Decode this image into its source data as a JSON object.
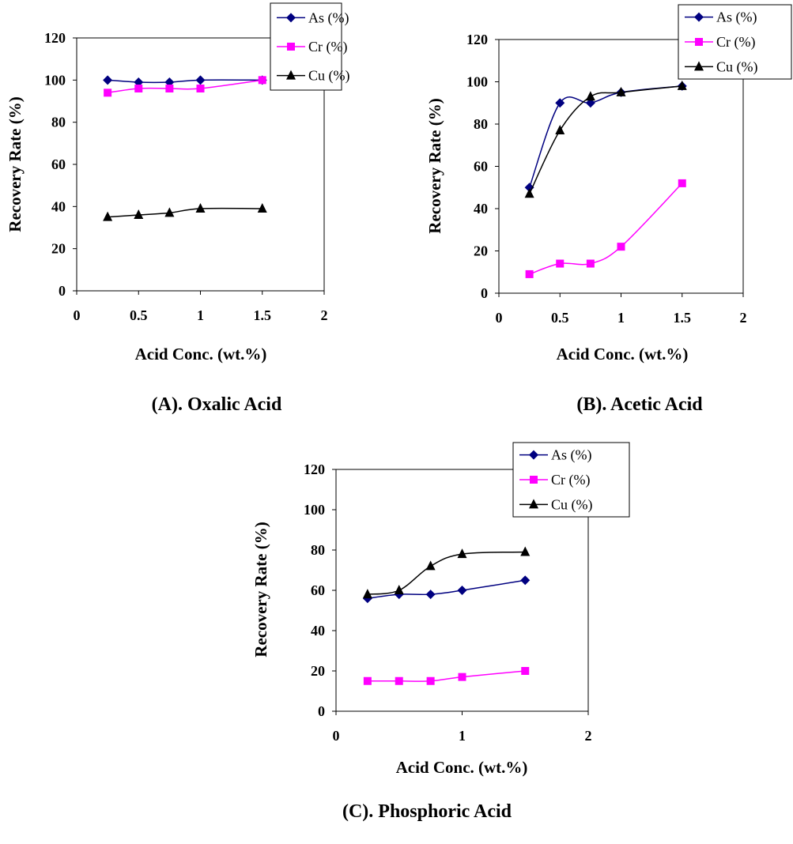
{
  "colors": {
    "as": "#000080",
    "cr": "#FF00FF",
    "cu": "#000000"
  },
  "chart_data": [
    {
      "type": "line",
      "caption": "(A). Oxalic Acid",
      "xlabel": "Acid Conc. (wt.%)",
      "ylabel": "Recovery Rate (%)",
      "xlim": [
        0,
        2
      ],
      "ylim": [
        0,
        120
      ],
      "xticks": [
        "0",
        "0.5",
        "1",
        "1.5",
        "2"
      ],
      "yticks": [
        "0",
        "20",
        "40",
        "60",
        "80",
        "100",
        "120"
      ],
      "legend_position": "top-right",
      "series": [
        {
          "name": "As (%)",
          "marker": "diamond",
          "x": [
            0.25,
            0.5,
            0.75,
            1.0,
            1.5
          ],
          "y": [
            100,
            99,
            99,
            100,
            100
          ]
        },
        {
          "name": "Cr (%)",
          "marker": "square",
          "x": [
            0.25,
            0.5,
            0.75,
            1.0,
            1.5
          ],
          "y": [
            94,
            96,
            96,
            96,
            100
          ]
        },
        {
          "name": "Cu (%)",
          "marker": "triangle",
          "x": [
            0.25,
            0.5,
            0.75,
            1.0,
            1.5
          ],
          "y": [
            35,
            36,
            37,
            39,
            39
          ]
        }
      ]
    },
    {
      "type": "line",
      "caption": "(B). Acetic Acid",
      "xlabel": "Acid Conc. (wt.%)",
      "ylabel": "Recovery Rate (%)",
      "xlim": [
        0,
        2
      ],
      "ylim": [
        0,
        120
      ],
      "xticks": [
        "0",
        "0.5",
        "1",
        "1.5",
        "2"
      ],
      "yticks": [
        "0",
        "20",
        "40",
        "60",
        "80",
        "100",
        "120"
      ],
      "legend_position": "top-right",
      "series": [
        {
          "name": "As (%)",
          "marker": "diamond",
          "x": [
            0.25,
            0.5,
            0.75,
            1.0,
            1.5
          ],
          "y": [
            50,
            90,
            90,
            95,
            98
          ]
        },
        {
          "name": "Cr (%)",
          "marker": "square",
          "x": [
            0.25,
            0.5,
            0.75,
            1.0,
            1.5
          ],
          "y": [
            9,
            14,
            14,
            22,
            52
          ]
        },
        {
          "name": "Cu (%)",
          "marker": "triangle",
          "x": [
            0.25,
            0.5,
            0.75,
            1.0,
            1.5
          ],
          "y": [
            47,
            77,
            93,
            95,
            98
          ]
        }
      ]
    },
    {
      "type": "line",
      "caption": "(C). Phosphoric Acid",
      "xlabel": "Acid Conc. (wt.%)",
      "ylabel": "Recovery Rate (%)",
      "xlim": [
        0,
        2
      ],
      "ylim": [
        0,
        120
      ],
      "xticks": [
        "0",
        "1",
        "2"
      ],
      "yticks": [
        "0",
        "20",
        "40",
        "60",
        "80",
        "100",
        "120"
      ],
      "legend_position": "top-right",
      "series": [
        {
          "name": "As (%)",
          "marker": "diamond",
          "x": [
            0.25,
            0.5,
            0.75,
            1.0,
            1.5
          ],
          "y": [
            56,
            58,
            58,
            60,
            65
          ]
        },
        {
          "name": "Cr (%)",
          "marker": "square",
          "x": [
            0.25,
            0.5,
            0.75,
            1.0,
            1.5
          ],
          "y": [
            15,
            15,
            15,
            17,
            20
          ]
        },
        {
          "name": "Cu (%)",
          "marker": "triangle",
          "x": [
            0.25,
            0.5,
            0.75,
            1.0,
            1.5
          ],
          "y": [
            58,
            60,
            72,
            78,
            79
          ]
        }
      ]
    }
  ]
}
